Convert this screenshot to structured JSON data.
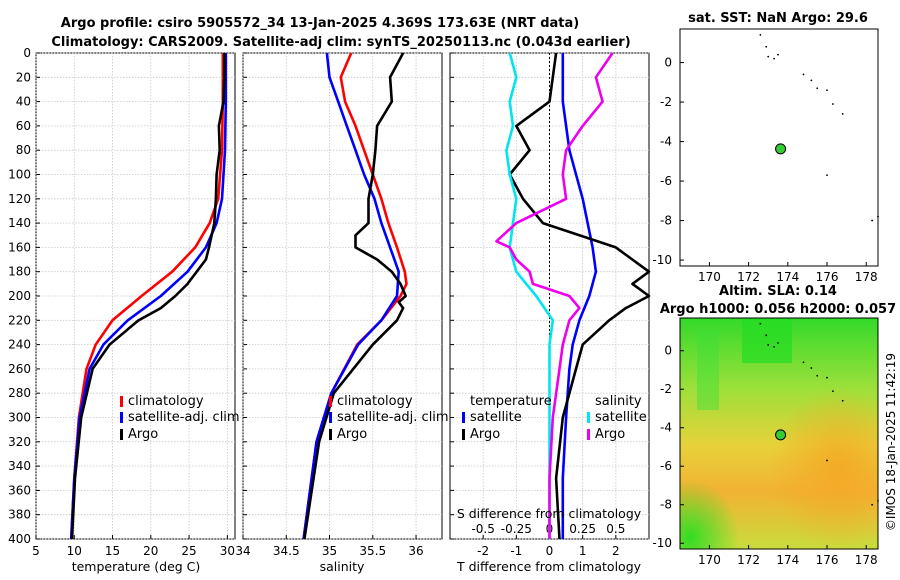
{
  "figure": {
    "title_line1": "Argo profile: csiro 5905572_34 13-Jan-2025 4.369S 173.63E (NRT data)",
    "title_line2": "Climatology: CARS2009. Satellite-adj clim: synTS_20250113.nc (0.043d earlier)",
    "side_label": "©IMOS 18-Jan-2025 11:42:19"
  },
  "colors": {
    "climatology": "#ff0000",
    "satellite": "#0000ff",
    "argo": "#000000",
    "sal_satellite": "#00e5ee",
    "sal_argo": "#ee00ee",
    "zero_line": "#000000",
    "map_green": "#22dd22",
    "map_orange": "#f5a623",
    "land": "#000000",
    "marker": "#33cc33"
  },
  "chart_data": [
    {
      "id": "temperature",
      "type": "line",
      "xlabel": "temperature (deg C)",
      "xlim": [
        5,
        31
      ],
      "ylim": [
        0,
        400
      ],
      "xticks": [
        5,
        10,
        15,
        20,
        25,
        30
      ],
      "yticks": [
        0,
        20,
        40,
        60,
        80,
        100,
        120,
        140,
        160,
        180,
        200,
        220,
        240,
        260,
        280,
        300,
        320,
        340,
        360,
        380,
        400
      ],
      "legend": [
        "climatology",
        "satellite-adj. clim",
        "Argo"
      ],
      "series": [
        {
          "name": "climatology",
          "depth": [
            0,
            40,
            80,
            120,
            140,
            160,
            180,
            200,
            220,
            240,
            260,
            300,
            350,
            400
          ],
          "values": [
            29.4,
            29.4,
            29.3,
            28.8,
            27.7,
            25.8,
            22.8,
            18.8,
            15.0,
            12.8,
            11.6,
            10.6,
            10.0,
            9.6
          ]
        },
        {
          "name": "satellite-adj. clim",
          "depth": [
            0,
            40,
            80,
            120,
            140,
            160,
            180,
            200,
            220,
            240,
            260,
            300,
            350,
            400
          ],
          "values": [
            29.8,
            29.8,
            29.7,
            29.3,
            28.6,
            27.2,
            24.8,
            21.3,
            17.0,
            13.8,
            12.0,
            10.7,
            10.0,
            9.6
          ]
        },
        {
          "name": "Argo",
          "depth": [
            0,
            20,
            40,
            60,
            80,
            100,
            120,
            140,
            160,
            170,
            180,
            190,
            200,
            210,
            220,
            240,
            260,
            300,
            350,
            400
          ],
          "values": [
            29.6,
            29.6,
            29.5,
            28.9,
            29.0,
            28.6,
            28.5,
            28.3,
            27.6,
            27.2,
            26.0,
            24.8,
            23.2,
            21.3,
            18.4,
            14.6,
            12.4,
            10.9,
            10.1,
            9.7
          ]
        }
      ]
    },
    {
      "id": "salinity",
      "type": "line",
      "xlabel": "salinity",
      "xlim": [
        34,
        36.3
      ],
      "ylim": [
        0,
        400
      ],
      "xticks": [
        34,
        34.5,
        35,
        35.5,
        36
      ],
      "legend": [
        "climatology",
        "satellite-adj. clim",
        "Argo"
      ],
      "series": [
        {
          "name": "climatology",
          "depth": [
            0,
            20,
            40,
            60,
            80,
            100,
            120,
            140,
            160,
            180,
            190,
            200,
            220,
            240,
            280,
            320,
            400
          ],
          "values": [
            35.25,
            35.13,
            35.18,
            35.3,
            35.4,
            35.5,
            35.6,
            35.68,
            35.78,
            35.87,
            35.89,
            35.82,
            35.6,
            35.32,
            35.02,
            34.85,
            34.7
          ]
        },
        {
          "name": "satellite-adj. clim",
          "depth": [
            0,
            20,
            40,
            60,
            80,
            100,
            120,
            140,
            160,
            180,
            200,
            220,
            240,
            280,
            320,
            400
          ],
          "values": [
            34.97,
            35.0,
            35.1,
            35.2,
            35.3,
            35.4,
            35.52,
            35.6,
            35.7,
            35.8,
            35.78,
            35.6,
            35.33,
            35.02,
            34.85,
            34.7
          ]
        },
        {
          "name": "Argo",
          "depth": [
            0,
            20,
            40,
            60,
            80,
            100,
            120,
            140,
            150,
            160,
            170,
            180,
            190,
            200,
            205,
            210,
            220,
            240,
            280,
            320,
            400
          ],
          "values": [
            35.85,
            35.7,
            35.72,
            35.55,
            35.53,
            35.5,
            35.45,
            35.45,
            35.3,
            35.3,
            35.55,
            35.72,
            35.82,
            35.88,
            35.8,
            35.85,
            35.78,
            35.5,
            35.05,
            34.88,
            34.71
          ]
        }
      ]
    },
    {
      "id": "differences",
      "type": "line",
      "xlabel": "T difference from climatology",
      "xlabel_top": "S difference from climatology",
      "xlim": [
        -3,
        3
      ],
      "ylim": [
        0,
        400
      ],
      "xticks": [
        -2,
        -1,
        0,
        1,
        2
      ],
      "s_tick_labels": [
        "-0.5",
        "-0.25",
        "0",
        "0.25",
        "0.5"
      ],
      "s_tick_positions_T": [
        -2,
        -1,
        0,
        1,
        2
      ],
      "legend_temperature_title": "temperature",
      "legend_salinity_title": "salinity",
      "legend_entries": [
        "satellite",
        "Argo"
      ],
      "series": [
        {
          "name": "T satellite",
          "depth": [
            0,
            40,
            80,
            120,
            160,
            180,
            200,
            220,
            240,
            260,
            300,
            350,
            400
          ],
          "values": [
            0.4,
            0.4,
            0.6,
            1.0,
            1.3,
            1.4,
            1.2,
            0.9,
            0.7,
            0.6,
            0.5,
            0.4,
            0.4
          ]
        },
        {
          "name": "T Argo",
          "depth": [
            0,
            40,
            60,
            80,
            100,
            120,
            140,
            160,
            180,
            190,
            200,
            210,
            220,
            240,
            260,
            300,
            350,
            400
          ],
          "values": [
            0.2,
            0.0,
            -1.0,
            -0.6,
            -1.2,
            -0.8,
            -0.2,
            2.0,
            3.0,
            2.5,
            3.0,
            2.3,
            1.8,
            1.0,
            0.8,
            0.4,
            0.2,
            0.3
          ]
        },
        {
          "name": "S satellite",
          "depth": [
            0,
            20,
            40,
            60,
            80,
            100,
            120,
            140,
            160,
            180,
            200,
            220,
            240,
            260,
            300,
            350,
            400
          ],
          "values": [
            -1.2,
            -1.0,
            -1.2,
            -1.1,
            -1.3,
            -1.2,
            -1.0,
            -1.1,
            -1.2,
            -1.0,
            -0.4,
            0.1,
            0.0,
            0.0,
            0.0,
            0.0,
            0.0
          ]
        },
        {
          "name": "S Argo",
          "depth": [
            0,
            20,
            40,
            60,
            80,
            100,
            120,
            140,
            155,
            160,
            170,
            180,
            190,
            200,
            210,
            220,
            240,
            260,
            300,
            350,
            400
          ],
          "values": [
            1.9,
            1.4,
            1.6,
            1.0,
            0.5,
            0.4,
            0.5,
            -1.0,
            -1.6,
            -1.2,
            -1.0,
            -0.6,
            -0.5,
            0.6,
            0.9,
            0.6,
            0.4,
            0.3,
            0.1,
            0.0,
            0.0
          ]
        }
      ]
    },
    {
      "id": "sst_map",
      "type": "scatter",
      "title": "sat. SST: NaN Argo: 29.6",
      "xlim": [
        168.5,
        178.6
      ],
      "ylim": [
        -10.3,
        1.7
      ],
      "xticks": [
        170,
        172,
        174,
        176,
        178
      ],
      "yticks": [
        0,
        -2,
        -4,
        -6,
        -8,
        -10
      ],
      "marker": {
        "lon": 173.63,
        "lat": -4.369
      }
    },
    {
      "id": "sla_map",
      "type": "heatmap",
      "title_line1": "Altim. SLA: 0.14",
      "title_line2": "Argo h1000: 0.056 h2000: 0.057",
      "xlim": [
        168.5,
        178.6
      ],
      "ylim": [
        -10.3,
        1.7
      ],
      "xticks": [
        170,
        172,
        174,
        176,
        178
      ],
      "yticks": [
        0,
        -2,
        -4,
        -6,
        -8,
        -10
      ],
      "marker": {
        "lon": 173.63,
        "lat": -4.369
      }
    }
  ]
}
